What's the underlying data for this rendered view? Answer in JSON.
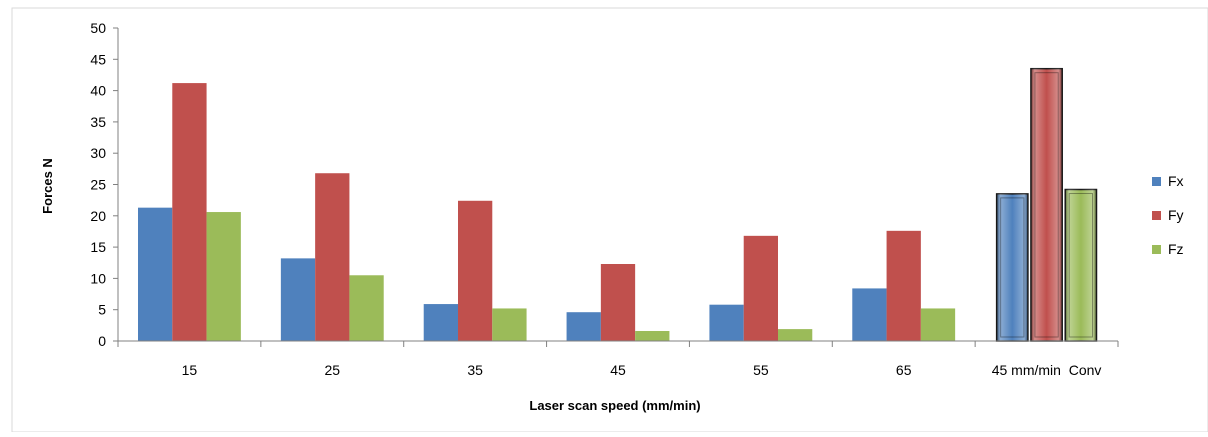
{
  "chart_data": {
    "type": "bar",
    "title": "",
    "xlabel": "Laser scan speed (mm/min)",
    "ylabel": "Forces N",
    "ylim": [
      0,
      50
    ],
    "yticks": [
      0,
      5,
      10,
      15,
      20,
      25,
      30,
      35,
      40,
      45,
      50
    ],
    "grid": false,
    "legend_position": "right",
    "categories": [
      "15",
      "25",
      "35",
      "45",
      "55",
      "65",
      "45 mm/min  Conv"
    ],
    "series": [
      {
        "name": "Fx",
        "color": "#4f81bd",
        "values": [
          21.3,
          13.2,
          5.9,
          4.6,
          5.8,
          8.4,
          23.5
        ]
      },
      {
        "name": "Fy",
        "color": "#c0504d",
        "values": [
          41.2,
          26.8,
          22.4,
          12.3,
          16.8,
          17.6,
          43.5
        ]
      },
      {
        "name": "Fz",
        "color": "#9bbb59",
        "values": [
          20.6,
          10.5,
          5.2,
          1.6,
          1.9,
          5.2,
          24.2
        ]
      }
    ],
    "highlighted_category": "45 mm/min  Conv"
  }
}
